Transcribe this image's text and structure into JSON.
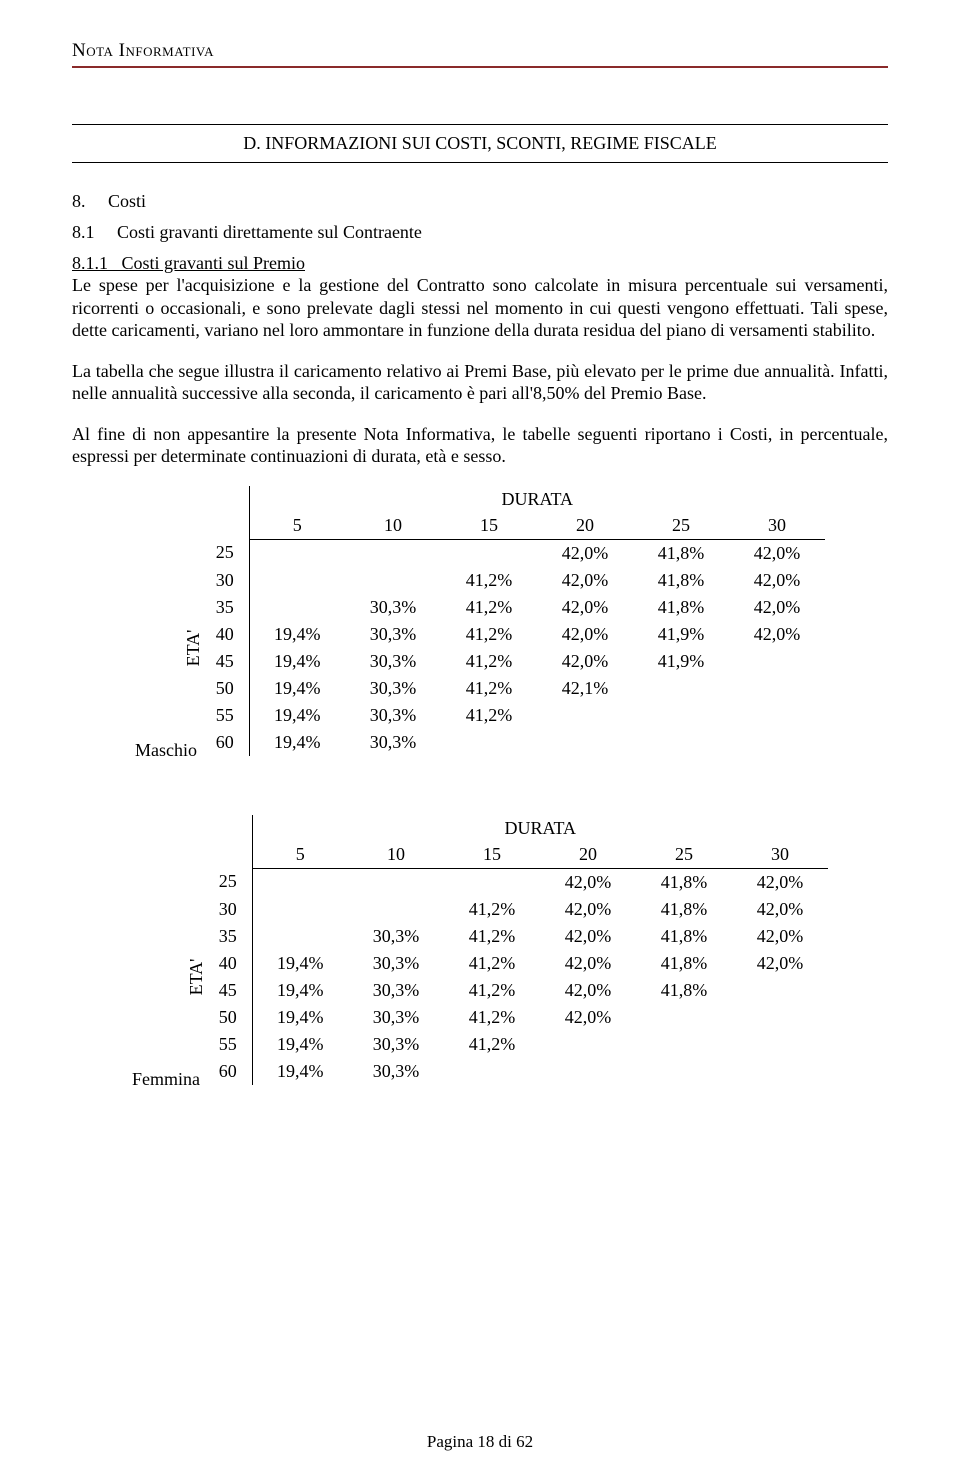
{
  "header": {
    "title": "Nota Informativa"
  },
  "section_bar": "D. INFORMAZIONI SUI COSTI, SCONTI, REGIME FISCALE",
  "h8": {
    "num": "8.",
    "label": "Costi"
  },
  "h81": {
    "num": "8.1",
    "label": "Costi gravanti direttamente sul Contraente"
  },
  "h811": {
    "num": "8.1.1",
    "label": "Costi gravanti sul Premio"
  },
  "para1": "Le spese per l'acquisizione e la gestione del Contratto sono calcolate in misura percentuale sui versamenti, ricorrenti o occasionali, e sono prelevate dagli stessi nel momento in cui questi vengono effettuati. Tali spese, dette caricamenti, variano nel loro ammontare in funzione della durata residua del piano di versamenti stabilito.",
  "para2": "La tabella che segue illustra il caricamento relativo ai Premi Base, più elevato per le prime due annualità. Infatti, nelle annualità successive alla seconda, il caricamento è pari all'8,50% del Premio Base.",
  "para3": "Al fine di non appesantire la presente Nota Informativa, le tabelle seguenti riportano i Costi, in percentuale, espressi per determinate continuazioni di durata, età e sesso.",
  "tables": {
    "axis_row_label": "ETA'",
    "axis_col_label": "DURATA",
    "durations": [
      "5",
      "10",
      "15",
      "20",
      "25",
      "30"
    ],
    "ages": [
      "25",
      "30",
      "35",
      "40",
      "45",
      "50",
      "55",
      "60"
    ],
    "male": {
      "title": "Maschio",
      "rows": [
        [
          "",
          "",
          "",
          "42,0%",
          "41,8%",
          "42,0%"
        ],
        [
          "",
          "",
          "41,2%",
          "42,0%",
          "41,8%",
          "42,0%"
        ],
        [
          "",
          "30,3%",
          "41,2%",
          "42,0%",
          "41,8%",
          "42,0%"
        ],
        [
          "19,4%",
          "30,3%",
          "41,2%",
          "42,0%",
          "41,9%",
          "42,0%"
        ],
        [
          "19,4%",
          "30,3%",
          "41,2%",
          "42,0%",
          "41,9%",
          ""
        ],
        [
          "19,4%",
          "30,3%",
          "41,2%",
          "42,1%",
          "",
          ""
        ],
        [
          "19,4%",
          "30,3%",
          "41,2%",
          "",
          "",
          ""
        ],
        [
          "19,4%",
          "30,3%",
          "",
          "",
          "",
          ""
        ]
      ]
    },
    "female": {
      "title": "Femmina",
      "rows": [
        [
          "",
          "",
          "",
          "42,0%",
          "41,8%",
          "42,0%"
        ],
        [
          "",
          "",
          "41,2%",
          "42,0%",
          "41,8%",
          "42,0%"
        ],
        [
          "",
          "30,3%",
          "41,2%",
          "42,0%",
          "41,8%",
          "42,0%"
        ],
        [
          "19,4%",
          "30,3%",
          "41,2%",
          "42,0%",
          "41,8%",
          "42,0%"
        ],
        [
          "19,4%",
          "30,3%",
          "41,2%",
          "42,0%",
          "41,8%",
          ""
        ],
        [
          "19,4%",
          "30,3%",
          "41,2%",
          "42,0%",
          "",
          ""
        ],
        [
          "19,4%",
          "30,3%",
          "41,2%",
          "",
          "",
          ""
        ],
        [
          "19,4%",
          "30,3%",
          "",
          "",
          "",
          ""
        ]
      ]
    }
  },
  "footer": "Pagina 18 di 62"
}
